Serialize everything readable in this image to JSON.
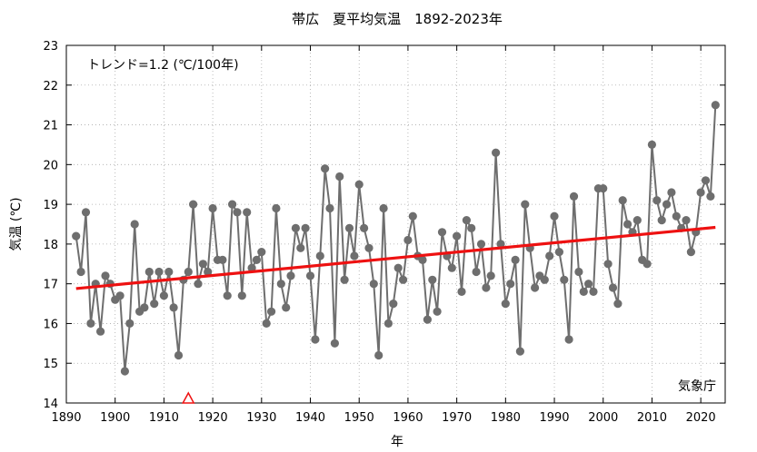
{
  "chart_data": {
    "type": "line",
    "title": "帯広　夏平均気温　1892-2023年",
    "xlabel": "年",
    "ylabel": "気温 (℃)",
    "trend_label": "トレンド=1.2 (℃/100年)",
    "source_label": "気象庁",
    "xlim": [
      1890,
      2025
    ],
    "ylim": [
      14,
      23
    ],
    "x_ticks": [
      "1890",
      "1900",
      "1910",
      "1920",
      "1930",
      "1940",
      "1950",
      "1960",
      "1970",
      "1980",
      "1990",
      "2000",
      "2010",
      "2020"
    ],
    "y_ticks": [
      "14",
      "15",
      "16",
      "17",
      "18",
      "19",
      "20",
      "21",
      "22",
      "23"
    ],
    "grid": true,
    "colors": {
      "series": "#6e6e6e",
      "trend": "#ee1111",
      "marker_relocation": "#ee1111"
    },
    "relocation_marker_year": 1915,
    "trend": {
      "x": [
        1892,
        2023
      ],
      "y": [
        16.88,
        18.42
      ]
    },
    "series": [
      {
        "x": [
          1892,
          1893,
          1894,
          1895,
          1896,
          1897,
          1898,
          1899,
          1900,
          1901,
          1902,
          1903,
          1904,
          1905,
          1906,
          1907,
          1908,
          1909,
          1910,
          1911,
          1912,
          1913,
          1914,
          1915,
          1916,
          1917,
          1918,
          1919,
          1920,
          1921,
          1922,
          1923,
          1924,
          1925,
          1926,
          1927,
          1928,
          1929,
          1930,
          1931,
          1932,
          1933,
          1934,
          1935,
          1936,
          1937,
          1938,
          1939,
          1940,
          1941,
          1942,
          1943,
          1944,
          1945,
          1946,
          1947,
          1948,
          1949,
          1950,
          1951,
          1952,
          1953,
          1954,
          1955,
          1956,
          1957,
          1958,
          1959,
          1960,
          1961,
          1962,
          1963,
          1964,
          1965,
          1966,
          1967,
          1968,
          1969,
          1970,
          1971,
          1972,
          1973,
          1974,
          1975,
          1976,
          1977,
          1978,
          1979,
          1980,
          1981,
          1982,
          1983,
          1984,
          1985,
          1986,
          1987,
          1988,
          1989,
          1990,
          1991,
          1992,
          1993,
          1994,
          1995,
          1996,
          1997,
          1998,
          1999,
          2000,
          2001,
          2002,
          2003,
          2004,
          2005,
          2006,
          2007,
          2008,
          2009,
          2010,
          2011,
          2012,
          2013,
          2014,
          2015,
          2016,
          2017,
          2018,
          2019,
          2020,
          2021,
          2022,
          2023
        ],
        "y": [
          18.2,
          17.3,
          18.8,
          16.0,
          17.0,
          15.8,
          17.2,
          17.0,
          16.6,
          16.7,
          14.8,
          16.0,
          18.5,
          16.3,
          16.4,
          17.3,
          16.5,
          17.3,
          16.7,
          17.3,
          16.4,
          15.2,
          17.1,
          17.3,
          19.0,
          17.0,
          17.5,
          17.3,
          18.9,
          17.6,
          17.6,
          16.7,
          19.0,
          18.8,
          16.7,
          18.8,
          17.4,
          17.6,
          17.8,
          16.0,
          16.3,
          18.9,
          17.0,
          16.4,
          17.2,
          18.4,
          17.9,
          18.4,
          17.2,
          15.6,
          17.7,
          19.9,
          18.9,
          15.5,
          19.7,
          17.1,
          18.4,
          17.7,
          19.5,
          18.4,
          17.9,
          17.0,
          15.2,
          18.9,
          16.0,
          16.5,
          17.4,
          17.1,
          18.1,
          18.7,
          17.7,
          17.6,
          16.1,
          17.1,
          16.3,
          18.3,
          17.7,
          17.4,
          18.2,
          16.8,
          18.6,
          18.4,
          17.3,
          18.0,
          16.9,
          17.2,
          20.3,
          18.0,
          16.5,
          17.0,
          17.6,
          15.3,
          19.0,
          17.9,
          16.9,
          17.2,
          17.1,
          17.7,
          18.7,
          17.8,
          17.1,
          15.6,
          19.2,
          17.3,
          16.8,
          17.0,
          16.8,
          19.4,
          19.4,
          17.5,
          16.9,
          16.5,
          19.1,
          18.5,
          18.3,
          18.6,
          17.6,
          17.5,
          20.5,
          19.1,
          18.6,
          19.0,
          19.3,
          18.7,
          18.4,
          18.6,
          17.8,
          18.3,
          19.3,
          19.6,
          19.2,
          21.5
        ]
      }
    ]
  }
}
